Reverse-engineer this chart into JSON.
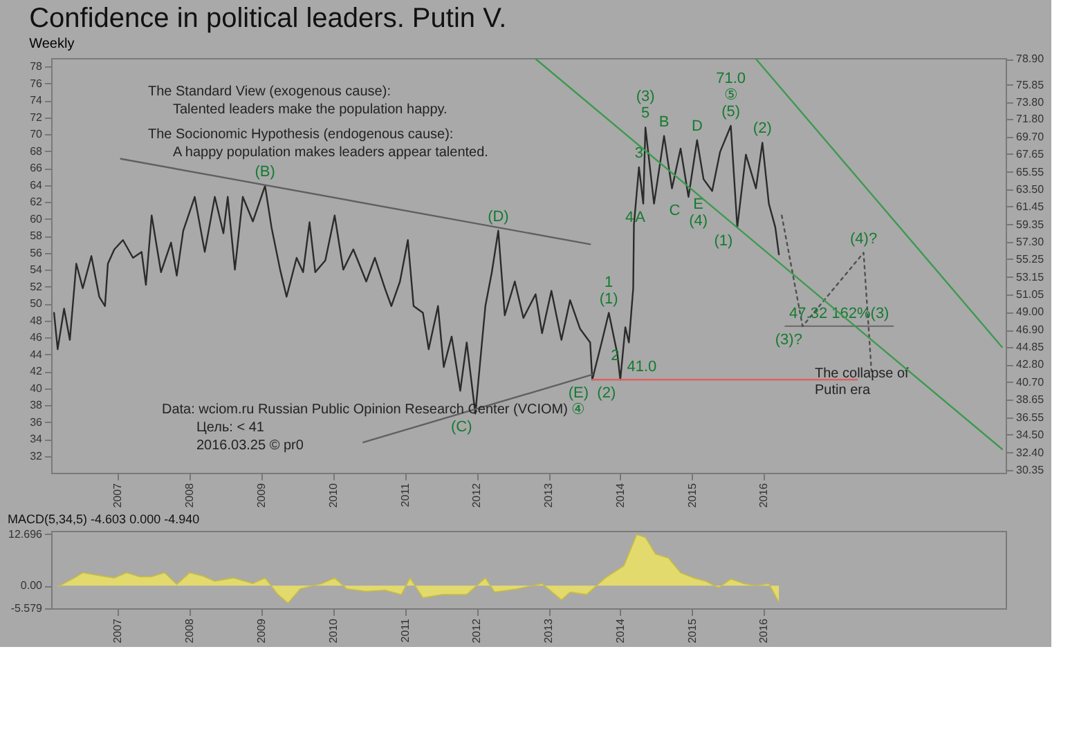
{
  "chart_data": [
    {
      "type": "line",
      "title": "Confidence in political leaders. Putin V.",
      "subtitle": "Weekly",
      "xlim": [
        2006.07,
        2019.37
      ],
      "xticks": [
        2007,
        2008,
        2009,
        2010,
        2011,
        2012,
        2013,
        2014,
        2015,
        2016
      ],
      "ylim": [
        30,
        79
      ],
      "yticks": [
        32,
        34,
        36,
        38,
        40,
        42,
        44,
        46,
        48,
        50,
        52,
        54,
        56,
        58,
        60,
        62,
        64,
        66,
        68,
        70,
        72,
        74,
        76,
        78
      ],
      "y2lim": [
        30,
        79
      ],
      "y2ticks": [
        {
          "value": 78.9,
          "label": "78.90"
        },
        {
          "value": 75.85,
          "label": "75.85"
        },
        {
          "value": 73.8,
          "label": "73.80"
        },
        {
          "value": 71.8,
          "label": "71.80"
        },
        {
          "value": 69.7,
          "label": "69.70"
        },
        {
          "value": 67.65,
          "label": "67.65"
        },
        {
          "value": 65.55,
          "label": "65.55"
        },
        {
          "value": 63.5,
          "label": "63.50"
        },
        {
          "value": 61.45,
          "label": "61.45"
        },
        {
          "value": 59.35,
          "label": "59.35"
        },
        {
          "value": 57.3,
          "label": "57.30"
        },
        {
          "value": 55.25,
          "label": "55.25"
        },
        {
          "value": 53.15,
          "label": "53.15"
        },
        {
          "value": 51.05,
          "label": "51.05"
        },
        {
          "value": 49,
          "label": "49.00"
        },
        {
          "value": 46.9,
          "label": "46.90"
        },
        {
          "value": 44.85,
          "label": "44.85"
        },
        {
          "value": 42.8,
          "label": "42.80"
        },
        {
          "value": 40.7,
          "label": "40.70"
        },
        {
          "value": 38.65,
          "label": "38.65"
        },
        {
          "value": 36.55,
          "label": "36.55"
        },
        {
          "value": 34.5,
          "label": "34.50"
        },
        {
          "value": 32.4,
          "label": "32.40"
        },
        {
          "value": 30.35,
          "label": "30.35"
        }
      ],
      "grid": false,
      "line_style": "solid",
      "series": [
        {
          "color": "#2b2b2b",
          "x": [
            2006.11,
            2006.16,
            2006.25,
            2006.33,
            2006.42,
            2006.51,
            2006.63,
            2006.74,
            2006.82,
            2006.86,
            2006.95,
            2007.07,
            2007.21,
            2007.33,
            2007.39,
            2007.47,
            2007.6,
            2007.74,
            2007.82,
            2007.91,
            2008.07,
            2008.21,
            2008.35,
            2008.47,
            2008.53,
            2008.63,
            2008.74,
            2008.88,
            2009.05,
            2009.14,
            2009.26,
            2009.35,
            2009.49,
            2009.58,
            2009.67,
            2009.75,
            2009.89,
            2010.02,
            2010.14,
            2010.28,
            2010.46,
            2010.58,
            2010.72,
            2010.81,
            2010.93,
            2011.04,
            2011.12,
            2011.25,
            2011.33,
            2011.46,
            2011.54,
            2011.65,
            2011.77,
            2011.86,
            2011.98,
            2012.12,
            2012.21,
            2012.3,
            2012.39,
            2012.53,
            2012.65,
            2012.82,
            2012.91,
            2013.04,
            2013.18,
            2013.3,
            2013.44,
            2013.58,
            2013.61,
            2013.74,
            2013.84,
            2013.96,
            2014.0,
            2014.07,
            2014.12,
            2014.18,
            2014.19,
            2014.26,
            2014.32,
            2014.35,
            2014.47,
            2014.56,
            2014.61,
            2014.72,
            2014.84,
            2014.95,
            2015.07,
            2015.16,
            2015.28,
            2015.39,
            2015.54,
            2015.63,
            2015.75,
            2015.89,
            2015.98,
            2016.07,
            2016.16,
            2016.21
          ],
          "values": [
            48.9,
            44.6,
            49.4,
            45.7,
            54.7,
            51.8,
            55.6,
            50.8,
            49.7,
            54.7,
            56.4,
            57.5,
            55.4,
            56.1,
            52.2,
            60.4,
            53.7,
            57.2,
            53.3,
            58.6,
            62.6,
            56.1,
            62.6,
            58.3,
            62.6,
            54.0,
            62.6,
            59.7,
            63.9,
            59.0,
            54.0,
            50.8,
            55.4,
            53.7,
            59.6,
            53.7,
            55.1,
            60.4,
            54.0,
            56.4,
            52.6,
            55.4,
            51.8,
            49.7,
            52.6,
            57.5,
            49.7,
            48.9,
            44.6,
            49.7,
            42.5,
            46.1,
            39.7,
            45.4,
            37.0,
            49.7,
            53.7,
            58.6,
            48.6,
            52.6,
            48.3,
            51.1,
            46.5,
            51.5,
            45.7,
            50.4,
            47.0,
            45.4,
            41.0,
            45.4,
            48.9,
            44.0,
            41.0,
            47.2,
            45.4,
            51.8,
            59.3,
            66.1,
            61.8,
            70.8,
            61.8,
            66.9,
            69.8,
            63.6,
            68.3,
            62.6,
            69.3,
            64.7,
            63.3,
            67.9,
            71.0,
            59.0,
            67.6,
            63.6,
            69.0,
            61.8,
            59.0,
            55.8
          ]
        },
        {
          "color": "#606060",
          "x": [
            2007.04,
            2013.58
          ],
          "values": [
            67.1,
            57.0
          ]
        },
        {
          "color": "#606060",
          "x": [
            2010.42,
            2013.61
          ],
          "values": [
            33.6,
            41.6
          ]
        },
        {
          "color": "#e06060",
          "x": [
            2013.61,
            2017.3
          ],
          "values": [
            41.0,
            41.0
          ]
        },
        {
          "color": "#707070",
          "x": [
            2016.3,
            2017.8
          ],
          "values": [
            47.32,
            47.32
          ]
        },
        {
          "color": "#505050",
          "line_style": "dotted",
          "x": [
            2016.25,
            2016.54,
            2017.39,
            2017.5
          ],
          "values": [
            60.4,
            47.32,
            56.0,
            42.0
          ]
        },
        {
          "color": "#3c9a50",
          "axis": "y2",
          "x": [
            2015.89,
            2019.32
          ],
          "values": [
            78.9,
            44.85
          ]
        },
        {
          "color": "#3c9a50",
          "axis": "y2",
          "x": [
            2012.82,
            2019.32
          ],
          "values": [
            78.9,
            32.8
          ]
        }
      ],
      "annotations": [
        "The Standard View (exogenous cause):",
        "Talented leaders make the population happy.",
        "The Socionomic Hypothesis (endogenous cause):",
        "A happy population makes leaders appear talented.",
        "Data: wciom.ru Russian Public Opinion Research Center (VCIOM)",
        "Цель: < 41",
        "2016.03.25 © pr0",
        "The collapse of\nPutin era",
        {
          "text": "(B)",
          "x": 2009.05,
          "y": 63.9
        },
        {
          "text": "(D)",
          "x": 2012.3,
          "y": 58.6
        },
        {
          "text": "(C)",
          "x": 2011.98,
          "y": 37.0
        },
        {
          "text": "(E)",
          "x": 2013.61,
          "y": 41.0
        },
        {
          "text": "④",
          "x": 2013.61,
          "y": 41.0
        },
        {
          "text": "(1)",
          "x": 2013.84,
          "y": 48.9
        },
        {
          "text": "1",
          "x": 2013.84,
          "y": 48.9
        },
        {
          "text": "2",
          "x": 2014.12,
          "y": 45.4
        },
        {
          "text": "(2)",
          "x": 2014.0,
          "y": 41.0
        },
        {
          "text": "3",
          "x": 2014.26,
          "y": 66.1
        },
        {
          "text": "4",
          "x": 2014.32,
          "y": 61.8
        },
        {
          "text": "5",
          "x": 2014.35,
          "y": 70.8
        },
        {
          "text": "(3)",
          "x": 2014.35,
          "y": 70.8
        },
        {
          "text": "A",
          "x": 2014.47,
          "y": 61.8
        },
        {
          "text": "B",
          "x": 2014.61,
          "y": 69.8
        },
        {
          "text": "C",
          "x": 2014.95,
          "y": 62.6
        },
        {
          "text": "D",
          "x": 2015.07,
          "y": 69.3
        },
        {
          "text": "E",
          "x": 2015.28,
          "y": 63.3
        },
        {
          "text": "(4)",
          "x": 2015.28,
          "y": 63.3
        },
        {
          "text": "(5)",
          "x": 2015.54,
          "y": 71.0
        },
        {
          "text": "⑤",
          "x": 2015.54,
          "y": 71.0
        },
        {
          "text": "71.0",
          "x": 2015.54,
          "y": 71.0
        },
        {
          "text": "(1)",
          "x": 2015.63,
          "y": 59.0
        },
        {
          "text": "(2)",
          "x": 2015.98,
          "y": 69.0
        },
        {
          "text": "41.0",
          "x": 2014.3,
          "y": 41.0
        },
        {
          "text": "47.32  162%(3)",
          "x": 2017.05,
          "y": 47.32
        },
        {
          "text": "(3)?",
          "x": 2016.54,
          "y": 47.32
        },
        {
          "text": "(4)?",
          "x": 2017.39,
          "y": 56.0
        }
      ]
    },
    {
      "type": "area",
      "title": "MACD(5,34,5) -4.603 0.000 -4.940",
      "xlim": [
        2006.07,
        2019.37
      ],
      "xticks": [
        2007,
        2008,
        2009,
        2010,
        2011,
        2012,
        2013,
        2014,
        2015,
        2016
      ],
      "ylim": [
        -5.579,
        13.5
      ],
      "yticks": [
        -5.579,
        {
          "value": 0,
          "label": "0.00"
        },
        12.696
      ],
      "grid": false,
      "series": [
        {
          "color": "#e6dc6a",
          "x": [
            2006.16,
            2006.39,
            2006.51,
            2006.77,
            2006.95,
            2007.12,
            2007.3,
            2007.47,
            2007.65,
            2007.82,
            2008.0,
            2008.18,
            2008.35,
            2008.61,
            2008.88,
            2009.05,
            2009.23,
            2009.37,
            2009.54,
            2009.84,
            2010.02,
            2010.19,
            2010.46,
            2010.72,
            2010.95,
            2011.07,
            2011.25,
            2011.51,
            2011.86,
            2012.12,
            2012.25,
            2012.56,
            2012.91,
            2013.18,
            2013.3,
            2013.53,
            2013.79,
            2014.05,
            2014.23,
            2014.35,
            2014.49,
            2014.67,
            2014.84,
            2015.02,
            2015.19,
            2015.37,
            2015.54,
            2015.72,
            2015.89,
            2016.07,
            2016.21
          ],
          "values": [
            -0.3,
            1.9,
            3.2,
            2.4,
            1.9,
            3.2,
            2.2,
            2.2,
            3.2,
            0.3,
            3.2,
            2.4,
            1.1,
            1.9,
            0.5,
            1.9,
            -2.2,
            -4.3,
            -0.8,
            0.5,
            1.9,
            -0.8,
            -1.4,
            -1.1,
            -2.2,
            1.9,
            -3.0,
            -2.2,
            -2.2,
            1.9,
            -1.6,
            -0.8,
            0.5,
            -3.5,
            -1.6,
            -2.2,
            1.9,
            4.9,
            12.6,
            11.9,
            7.8,
            6.8,
            3.2,
            1.9,
            1.1,
            -0.5,
            1.6,
            0.5,
            0.0,
            0.5,
            -4.1
          ]
        }
      ]
    }
  ]
}
